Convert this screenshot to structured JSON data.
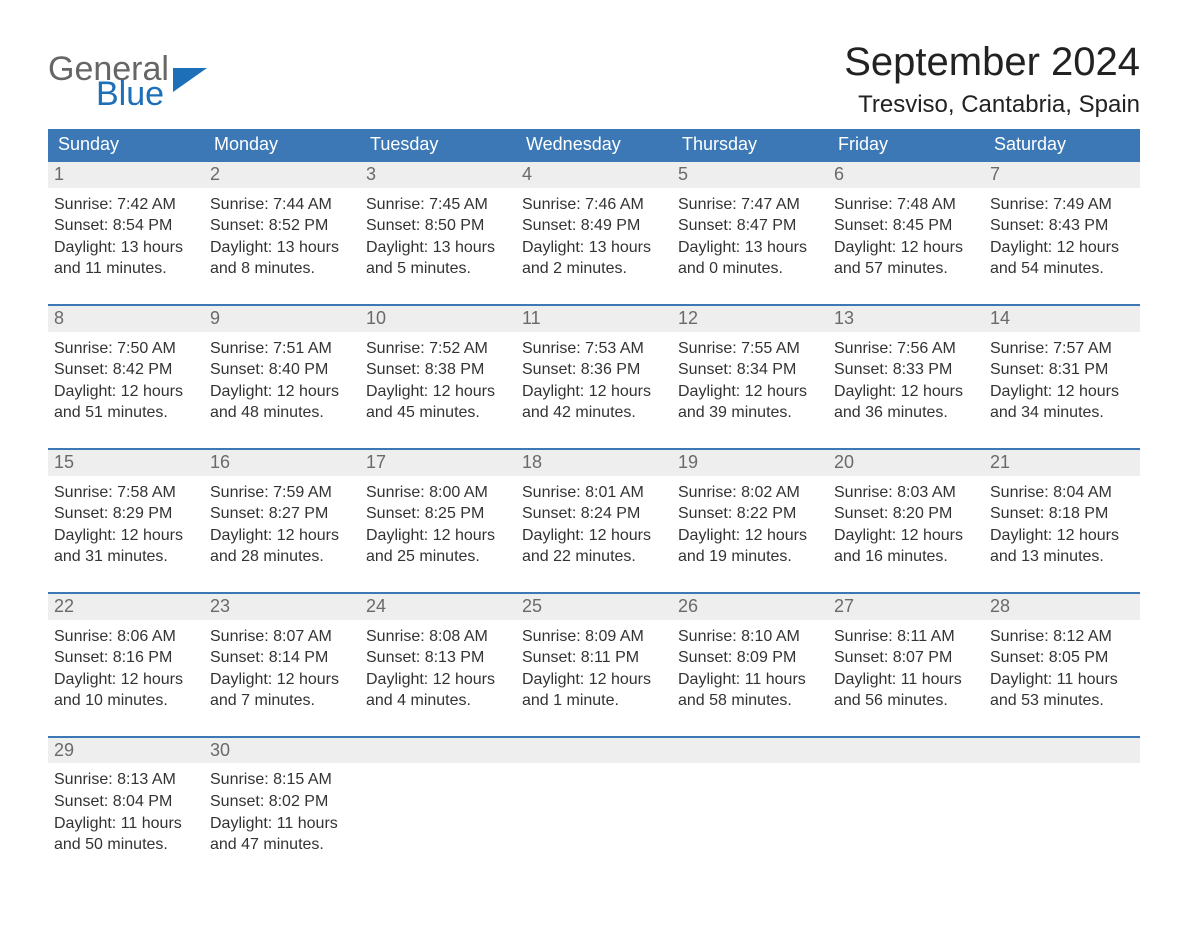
{
  "brand": {
    "line1": "General",
    "line2": "Blue"
  },
  "title": "September 2024",
  "location": "Tresviso, Cantabria, Spain",
  "days_of_week": [
    "Sunday",
    "Monday",
    "Tuesday",
    "Wednesday",
    "Thursday",
    "Friday",
    "Saturday"
  ],
  "colors": {
    "header_blue": "#3b78b5",
    "row_stripe": "#eeeeee",
    "row_border": "#3b78b5",
    "logo_gray": "#666666",
    "logo_blue": "#1d6fb8",
    "background": "#ffffff",
    "text": "#333333"
  },
  "typography": {
    "title_fontsize": 40,
    "location_fontsize": 24,
    "header_fontsize": 18,
    "body_fontsize": 16,
    "font_family": "Arial"
  },
  "layout": {
    "columns": 7,
    "rows": 5,
    "start_weekday": "Sunday",
    "cell_width_ratio": 0.1428
  },
  "weeks": [
    [
      {
        "n": "1",
        "sunrise": "Sunrise: 7:42 AM",
        "sunset": "Sunset: 8:54 PM",
        "day1": "Daylight: 13 hours",
        "day2": "and 11 minutes."
      },
      {
        "n": "2",
        "sunrise": "Sunrise: 7:44 AM",
        "sunset": "Sunset: 8:52 PM",
        "day1": "Daylight: 13 hours",
        "day2": "and 8 minutes."
      },
      {
        "n": "3",
        "sunrise": "Sunrise: 7:45 AM",
        "sunset": "Sunset: 8:50 PM",
        "day1": "Daylight: 13 hours",
        "day2": "and 5 minutes."
      },
      {
        "n": "4",
        "sunrise": "Sunrise: 7:46 AM",
        "sunset": "Sunset: 8:49 PM",
        "day1": "Daylight: 13 hours",
        "day2": "and 2 minutes."
      },
      {
        "n": "5",
        "sunrise": "Sunrise: 7:47 AM",
        "sunset": "Sunset: 8:47 PM",
        "day1": "Daylight: 13 hours",
        "day2": "and 0 minutes."
      },
      {
        "n": "6",
        "sunrise": "Sunrise: 7:48 AM",
        "sunset": "Sunset: 8:45 PM",
        "day1": "Daylight: 12 hours",
        "day2": "and 57 minutes."
      },
      {
        "n": "7",
        "sunrise": "Sunrise: 7:49 AM",
        "sunset": "Sunset: 8:43 PM",
        "day1": "Daylight: 12 hours",
        "day2": "and 54 minutes."
      }
    ],
    [
      {
        "n": "8",
        "sunrise": "Sunrise: 7:50 AM",
        "sunset": "Sunset: 8:42 PM",
        "day1": "Daylight: 12 hours",
        "day2": "and 51 minutes."
      },
      {
        "n": "9",
        "sunrise": "Sunrise: 7:51 AM",
        "sunset": "Sunset: 8:40 PM",
        "day1": "Daylight: 12 hours",
        "day2": "and 48 minutes."
      },
      {
        "n": "10",
        "sunrise": "Sunrise: 7:52 AM",
        "sunset": "Sunset: 8:38 PM",
        "day1": "Daylight: 12 hours",
        "day2": "and 45 minutes."
      },
      {
        "n": "11",
        "sunrise": "Sunrise: 7:53 AM",
        "sunset": "Sunset: 8:36 PM",
        "day1": "Daylight: 12 hours",
        "day2": "and 42 minutes."
      },
      {
        "n": "12",
        "sunrise": "Sunrise: 7:55 AM",
        "sunset": "Sunset: 8:34 PM",
        "day1": "Daylight: 12 hours",
        "day2": "and 39 minutes."
      },
      {
        "n": "13",
        "sunrise": "Sunrise: 7:56 AM",
        "sunset": "Sunset: 8:33 PM",
        "day1": "Daylight: 12 hours",
        "day2": "and 36 minutes."
      },
      {
        "n": "14",
        "sunrise": "Sunrise: 7:57 AM",
        "sunset": "Sunset: 8:31 PM",
        "day1": "Daylight: 12 hours",
        "day2": "and 34 minutes."
      }
    ],
    [
      {
        "n": "15",
        "sunrise": "Sunrise: 7:58 AM",
        "sunset": "Sunset: 8:29 PM",
        "day1": "Daylight: 12 hours",
        "day2": "and 31 minutes."
      },
      {
        "n": "16",
        "sunrise": "Sunrise: 7:59 AM",
        "sunset": "Sunset: 8:27 PM",
        "day1": "Daylight: 12 hours",
        "day2": "and 28 minutes."
      },
      {
        "n": "17",
        "sunrise": "Sunrise: 8:00 AM",
        "sunset": "Sunset: 8:25 PM",
        "day1": "Daylight: 12 hours",
        "day2": "and 25 minutes."
      },
      {
        "n": "18",
        "sunrise": "Sunrise: 8:01 AM",
        "sunset": "Sunset: 8:24 PM",
        "day1": "Daylight: 12 hours",
        "day2": "and 22 minutes."
      },
      {
        "n": "19",
        "sunrise": "Sunrise: 8:02 AM",
        "sunset": "Sunset: 8:22 PM",
        "day1": "Daylight: 12 hours",
        "day2": "and 19 minutes."
      },
      {
        "n": "20",
        "sunrise": "Sunrise: 8:03 AM",
        "sunset": "Sunset: 8:20 PM",
        "day1": "Daylight: 12 hours",
        "day2": "and 16 minutes."
      },
      {
        "n": "21",
        "sunrise": "Sunrise: 8:04 AM",
        "sunset": "Sunset: 8:18 PM",
        "day1": "Daylight: 12 hours",
        "day2": "and 13 minutes."
      }
    ],
    [
      {
        "n": "22",
        "sunrise": "Sunrise: 8:06 AM",
        "sunset": "Sunset: 8:16 PM",
        "day1": "Daylight: 12 hours",
        "day2": "and 10 minutes."
      },
      {
        "n": "23",
        "sunrise": "Sunrise: 8:07 AM",
        "sunset": "Sunset: 8:14 PM",
        "day1": "Daylight: 12 hours",
        "day2": "and 7 minutes."
      },
      {
        "n": "24",
        "sunrise": "Sunrise: 8:08 AM",
        "sunset": "Sunset: 8:13 PM",
        "day1": "Daylight: 12 hours",
        "day2": "and 4 minutes."
      },
      {
        "n": "25",
        "sunrise": "Sunrise: 8:09 AM",
        "sunset": "Sunset: 8:11 PM",
        "day1": "Daylight: 12 hours",
        "day2": "and 1 minute."
      },
      {
        "n": "26",
        "sunrise": "Sunrise: 8:10 AM",
        "sunset": "Sunset: 8:09 PM",
        "day1": "Daylight: 11 hours",
        "day2": "and 58 minutes."
      },
      {
        "n": "27",
        "sunrise": "Sunrise: 8:11 AM",
        "sunset": "Sunset: 8:07 PM",
        "day1": "Daylight: 11 hours",
        "day2": "and 56 minutes."
      },
      {
        "n": "28",
        "sunrise": "Sunrise: 8:12 AM",
        "sunset": "Sunset: 8:05 PM",
        "day1": "Daylight: 11 hours",
        "day2": "and 53 minutes."
      }
    ],
    [
      {
        "n": "29",
        "sunrise": "Sunrise: 8:13 AM",
        "sunset": "Sunset: 8:04 PM",
        "day1": "Daylight: 11 hours",
        "day2": "and 50 minutes."
      },
      {
        "n": "30",
        "sunrise": "Sunrise: 8:15 AM",
        "sunset": "Sunset: 8:02 PM",
        "day1": "Daylight: 11 hours",
        "day2": "and 47 minutes."
      },
      {
        "empty": true
      },
      {
        "empty": true
      },
      {
        "empty": true
      },
      {
        "empty": true
      },
      {
        "empty": true
      }
    ]
  ]
}
